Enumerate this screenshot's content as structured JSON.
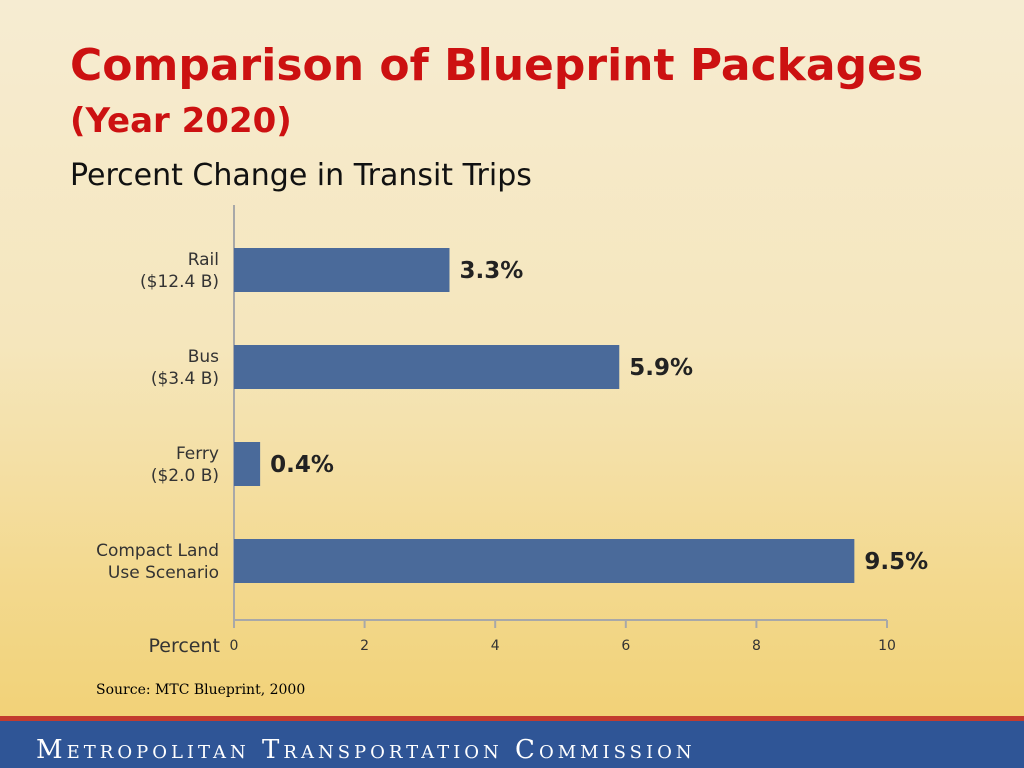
{
  "header": {
    "title_main": "Comparison of Blueprint Packages",
    "title_year": "(Year 2020)",
    "subtitle": "Percent Change in Transit Trips"
  },
  "source": "Source: MTC Blueprint, 2000",
  "footer": {
    "text": "Metropolitan Transportation Commission"
  },
  "colors": {
    "bar": "#4a6a9a",
    "title": "#cc1111",
    "footer": "#2f5596",
    "footer_stripe": "#c33b2e"
  },
  "chart_data": {
    "type": "bar",
    "orientation": "horizontal",
    "categories": [
      [
        "Rail",
        "($12.4 B)"
      ],
      [
        "Bus",
        "($3.4 B)"
      ],
      [
        "Ferry",
        "($2.0 B)"
      ],
      [
        "Compact Land",
        "Use Scenario"
      ]
    ],
    "values": [
      3.3,
      5.9,
      0.4,
      9.5
    ],
    "value_labels": [
      "3.3%",
      "5.9%",
      "0.4%",
      "9.5%"
    ],
    "xlabel": "Percent",
    "xlim": [
      0,
      10
    ],
    "xticks": [
      "0",
      "2",
      "4",
      "6",
      "8",
      "10"
    ],
    "grid": false,
    "legend": "none"
  }
}
